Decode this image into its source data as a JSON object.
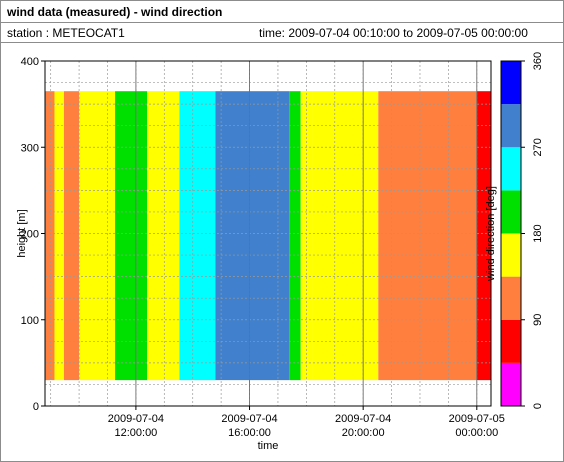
{
  "header": {
    "title": "wind data (measured) - wind direction",
    "station_label": "station : METEOCAT1",
    "time_label": "time: 2009-07-04 00:10:00 to 2009-07-05 00:00:00"
  },
  "chart_data": {
    "type": "heatmap",
    "xlabel": "time",
    "ylabel": "height [m]",
    "ylim": [
      0,
      400
    ],
    "y_ticks": [
      0,
      100,
      200,
      300,
      400
    ],
    "x_range": [
      "2009-07-04 08:48",
      "2009-07-05 00:30"
    ],
    "x_ticks": [
      {
        "time": "2009-07-04 12:00",
        "line1": "2009-07-04",
        "line2": "12:00:00"
      },
      {
        "time": "2009-07-04 16:00",
        "line1": "2009-07-04",
        "line2": "16:00:00"
      },
      {
        "time": "2009-07-04 20:00",
        "line1": "2009-07-04",
        "line2": "20:00:00"
      },
      {
        "time": "2009-07-05 00:00",
        "line1": "2009-07-05",
        "line2": "00:00:00"
      }
    ],
    "grid": true,
    "colorbar": {
      "label": "wind direction [deg]",
      "ticks": [
        0,
        90,
        180,
        270,
        360
      ],
      "bins": [
        {
          "from": 0,
          "to": 45,
          "color": "#ff00ff"
        },
        {
          "from": 45,
          "to": 90,
          "color": "#ff0000"
        },
        {
          "from": 90,
          "to": 135,
          "color": "#ff7f3f"
        },
        {
          "from": 135,
          "to": 180,
          "color": "#ffff00"
        },
        {
          "from": 180,
          "to": 225,
          "color": "#00e000"
        },
        {
          "from": 225,
          "to": 270,
          "color": "#00ffff"
        },
        {
          "from": 270,
          "to": 315,
          "color": "#4080cc"
        },
        {
          "from": 315,
          "to": 360,
          "color": "#0000ff"
        }
      ]
    },
    "height_range_m": [
      30,
      365
    ],
    "segments": [
      {
        "start": "2009-07-04 08:48",
        "end": "2009-07-04 09:08",
        "direction_deg": 112
      },
      {
        "start": "2009-07-04 09:08",
        "end": "2009-07-04 09:28",
        "direction_deg": 158
      },
      {
        "start": "2009-07-04 09:28",
        "end": "2009-07-04 10:00",
        "direction_deg": 112
      },
      {
        "start": "2009-07-04 10:00",
        "end": "2009-07-04 11:16",
        "direction_deg": 158
      },
      {
        "start": "2009-07-04 11:16",
        "end": "2009-07-04 12:24",
        "direction_deg": 202
      },
      {
        "start": "2009-07-04 12:24",
        "end": "2009-07-04 13:32",
        "direction_deg": 158
      },
      {
        "start": "2009-07-04 13:32",
        "end": "2009-07-04 14:48",
        "direction_deg": 248
      },
      {
        "start": "2009-07-04 14:48",
        "end": "2009-07-04 17:24",
        "direction_deg": 292
      },
      {
        "start": "2009-07-04 17:24",
        "end": "2009-07-04 17:48",
        "direction_deg": 202
      },
      {
        "start": "2009-07-04 17:48",
        "end": "2009-07-04 18:12",
        "direction_deg": 158
      },
      {
        "start": "2009-07-04 18:12",
        "end": "2009-07-04 20:32",
        "direction_deg": 158
      },
      {
        "start": "2009-07-04 20:32",
        "end": "2009-07-05 00:00",
        "direction_deg": 112
      },
      {
        "start": "2009-07-05 00:00",
        "end": "2009-07-05 00:30",
        "direction_deg": 67
      }
    ]
  }
}
